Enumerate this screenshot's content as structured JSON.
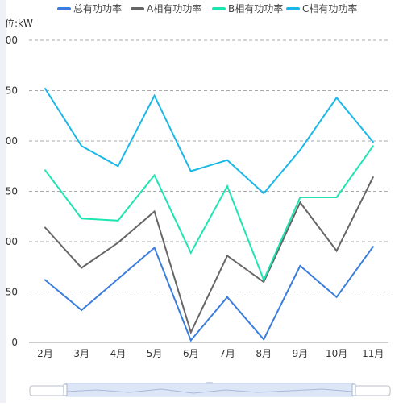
{
  "chart_data": {
    "type": "line",
    "unit_label": "单位:kW",
    "categories": [
      "2月",
      "3月",
      "4月",
      "5月",
      "6月",
      "7月",
      "8月",
      "9月",
      "10月",
      "11月"
    ],
    "y_ticks": [
      "0",
      "50",
      "100",
      "150",
      "200",
      "250",
      "300"
    ],
    "ylim": [
      0,
      300
    ],
    "grid": true,
    "legend_position": "top-center",
    "series": [
      {
        "name": "总有功功率",
        "color": "#3b7ddd",
        "values": [
          62,
          32,
          63,
          94,
          2,
          45,
          3,
          76,
          45,
          95
        ]
      },
      {
        "name": "A相有功功率",
        "color": "#666666",
        "values": [
          114,
          74,
          99,
          130,
          10,
          86,
          60,
          139,
          91,
          164
        ]
      },
      {
        "name": "B相有功功率",
        "color": "#1de5b2",
        "values": [
          171,
          123,
          121,
          166,
          89,
          155,
          62,
          144,
          144,
          195
        ]
      },
      {
        "name": "C相有功功率",
        "color": "#1ab8e8",
        "values": [
          252,
          195,
          175,
          245,
          170,
          181,
          148,
          191,
          243,
          199
        ]
      }
    ]
  }
}
